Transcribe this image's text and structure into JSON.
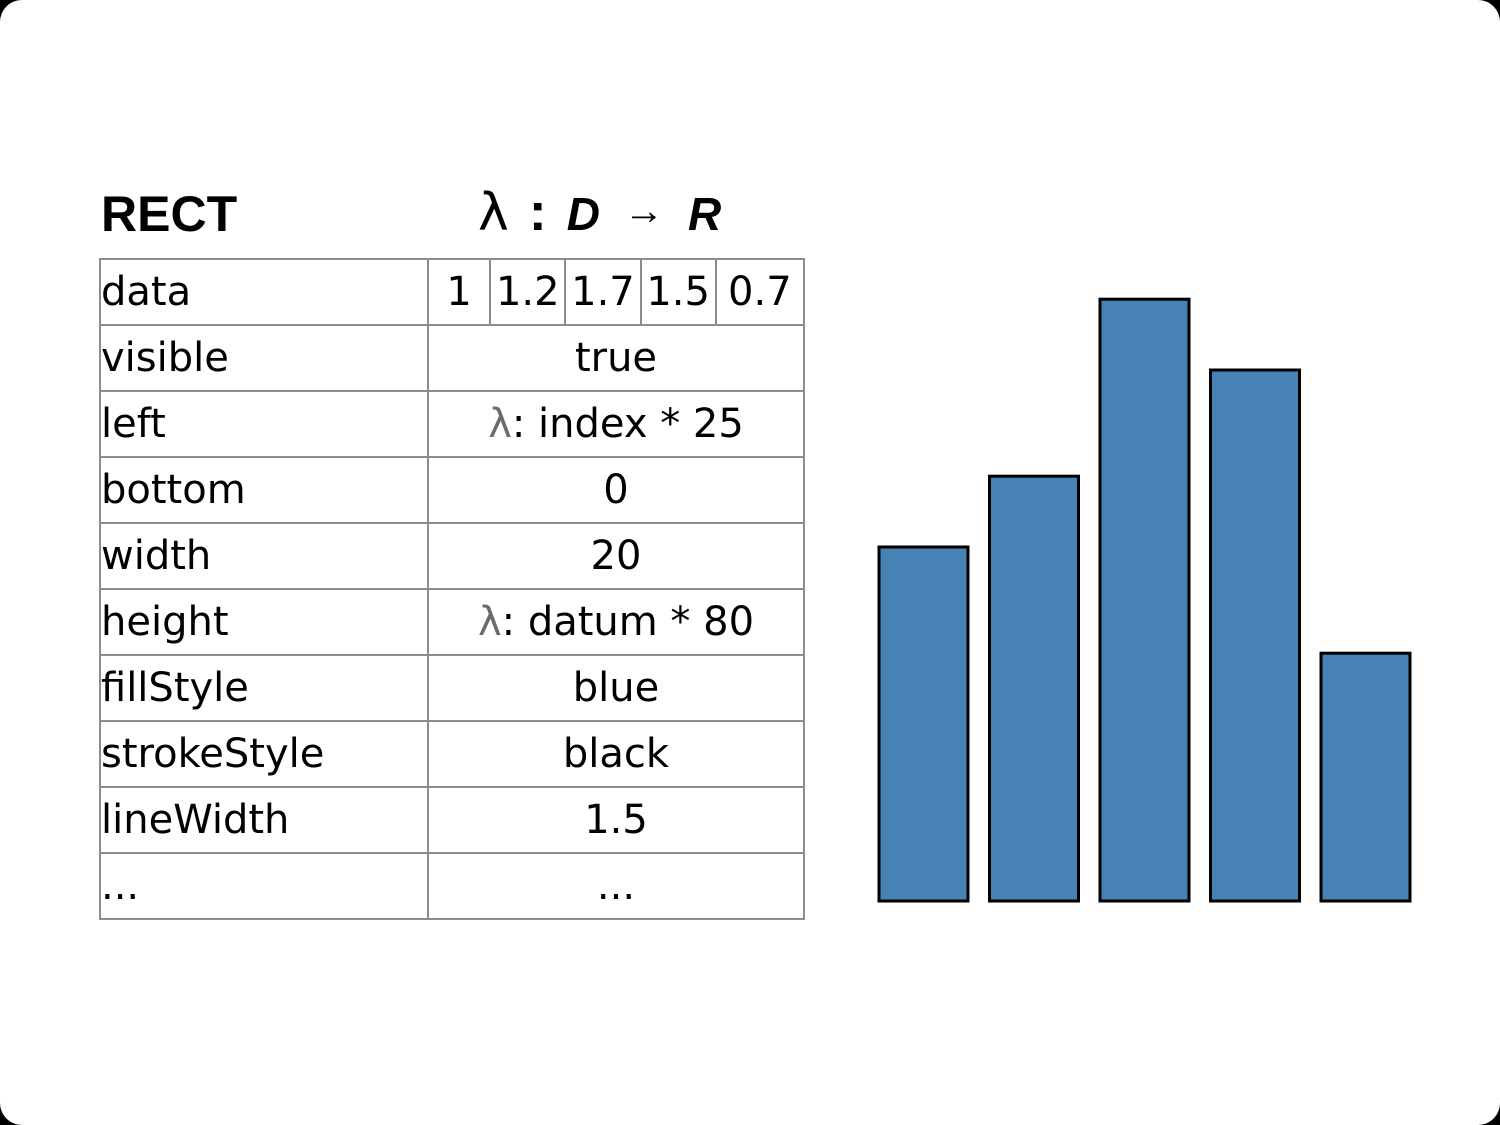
{
  "title": "RECT",
  "formula": {
    "lambda": "λ",
    "colon": ":",
    "domain": "D",
    "arrow": "→",
    "range": "R"
  },
  "properties": [
    {
      "name": "data",
      "values": [
        "1",
        "1.2",
        "1.7",
        "1.5",
        "0.7"
      ]
    },
    {
      "name": "visible",
      "value": "true"
    },
    {
      "name": "left",
      "lambda": "λ",
      "value": ": index * 25"
    },
    {
      "name": "bottom",
      "value": "0"
    },
    {
      "name": "width",
      "value": "20"
    },
    {
      "name": "height",
      "lambda": "λ",
      "value": ": datum * 80"
    },
    {
      "name": "fillStyle",
      "value": "blue"
    },
    {
      "name": "strokeStyle",
      "value": "black"
    },
    {
      "name": "lineWidth",
      "value": "1.5"
    },
    {
      "name": "...",
      "value": "..."
    }
  ],
  "chart_data": {
    "type": "bar",
    "categories": [
      "",
      "",
      "",
      "",
      ""
    ],
    "values": [
      1,
      1.2,
      1.7,
      1.5,
      0.7
    ],
    "fill_color": "#4682b4",
    "stroke_color": "#000000"
  }
}
